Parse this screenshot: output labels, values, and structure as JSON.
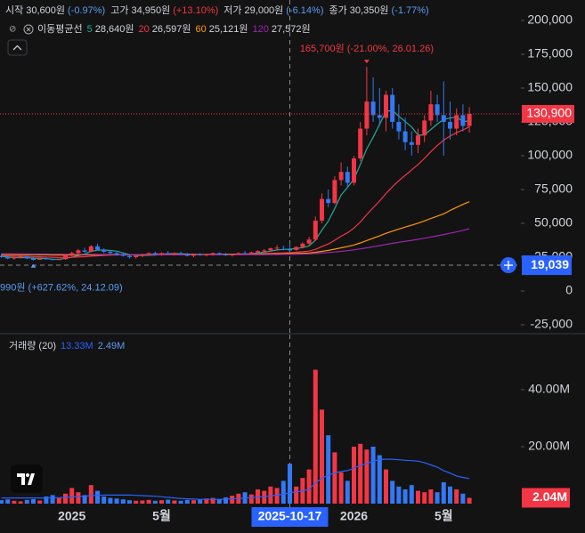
{
  "chart_data": [
    {
      "type": "candlestick",
      "ohlc_legend": [
        {
          "label": "시작",
          "value": "30,600원",
          "change": "(-0.97%)"
        },
        {
          "label": "고가",
          "value": "34,950원",
          "change": "(+13.10%)"
        },
        {
          "label": "저가",
          "value": "29,000원",
          "change": "(-6.14%)"
        },
        {
          "label": "종가",
          "value": "30,350원",
          "change": "(-1.77%)"
        }
      ],
      "ma_legend_title": "이동평균선",
      "up_color": "#f23645",
      "down_color": "#3179f5",
      "categories": [
        null,
        null,
        null,
        null,
        null,
        null,
        null,
        null,
        null,
        null,
        null,
        "2025",
        null,
        null,
        null,
        null,
        null,
        null,
        null,
        null,
        null,
        null,
        null,
        null,
        null,
        "5월",
        null,
        null,
        null,
        null,
        null,
        null,
        null,
        null,
        null,
        null,
        null,
        null,
        null,
        null,
        null,
        null,
        null,
        null,
        null,
        "2025-10-17",
        null,
        null,
        null,
        null,
        null,
        null,
        null,
        null,
        null,
        "2026",
        null,
        null,
        null,
        null,
        null,
        null,
        null,
        null,
        null,
        null,
        null,
        null,
        null,
        "5월",
        null,
        null,
        null,
        null
      ],
      "ohlc": [
        [
          26000,
          27500,
          24500,
          25000
        ],
        [
          25000,
          26000,
          23500,
          24000
        ],
        [
          24000,
          25500,
          23000,
          25000
        ],
        [
          25000,
          26500,
          24000,
          25500
        ],
        [
          25500,
          26000,
          23500,
          24000
        ],
        [
          24000,
          25000,
          22500,
          23000
        ],
        [
          23000,
          24500,
          23200,
          24000
        ],
        [
          24000,
          25000,
          23300,
          23500
        ],
        [
          23500,
          24000,
          22990,
          23000
        ],
        [
          23000,
          24000,
          23100,
          23500
        ],
        [
          23500,
          27000,
          23000,
          26500
        ],
        [
          26500,
          29000,
          25500,
          28000
        ],
        [
          28000,
          31000,
          27000,
          30000
        ],
        [
          30000,
          32000,
          28500,
          29000
        ],
        [
          29000,
          34000,
          28500,
          33000
        ],
        [
          33000,
          35000,
          30000,
          30500
        ],
        [
          30500,
          31500,
          28000,
          29000
        ],
        [
          29000,
          30000,
          27000,
          28000
        ],
        [
          28000,
          29000,
          26000,
          27000
        ],
        [
          27000,
          28500,
          25500,
          26000
        ],
        [
          26000,
          27000,
          24000,
          25000
        ],
        [
          25000,
          26500,
          24000,
          26000
        ],
        [
          26000,
          27500,
          25000,
          27000
        ],
        [
          27000,
          28500,
          26000,
          28000
        ],
        [
          28000,
          29000,
          26500,
          27000
        ],
        [
          27000,
          28500,
          26000,
          28000
        ],
        [
          28000,
          29500,
          27000,
          27500
        ],
        [
          27500,
          28500,
          26500,
          28000
        ],
        [
          28000,
          29000,
          27000,
          27000
        ],
        [
          27000,
          28000,
          25500,
          26000
        ],
        [
          26000,
          27500,
          25000,
          27000
        ],
        [
          27000,
          28000,
          26000,
          26500
        ],
        [
          26500,
          27500,
          25500,
          27000
        ],
        [
          27000,
          28500,
          26000,
          28000
        ],
        [
          28000,
          28500,
          26500,
          27000
        ],
        [
          27000,
          28000,
          26000,
          26500
        ],
        [
          26500,
          27500,
          25500,
          27000
        ],
        [
          27000,
          28500,
          26500,
          28000
        ],
        [
          28000,
          29500,
          27000,
          27500
        ],
        [
          27500,
          29000,
          27000,
          28500
        ],
        [
          28500,
          30000,
          27500,
          29500
        ],
        [
          29500,
          31000,
          28500,
          30000
        ],
        [
          30000,
          32000,
          29000,
          31500
        ],
        [
          31500,
          34000,
          30500,
          32000
        ],
        [
          31000,
          33500,
          30000,
          30600
        ],
        [
          30600,
          34950,
          29000,
          30350
        ],
        [
          30350,
          33000,
          29500,
          32500
        ],
        [
          32500,
          36000,
          31500,
          35000
        ],
        [
          35000,
          40000,
          34000,
          38000
        ],
        [
          38000,
          55000,
          37000,
          52000
        ],
        [
          52000,
          72000,
          50000,
          68000
        ],
        [
          68000,
          75000,
          62000,
          65000
        ],
        [
          65000,
          85000,
          64000,
          82000
        ],
        [
          82000,
          95000,
          78000,
          88000
        ],
        [
          88000,
          92000,
          76000,
          80000
        ],
        [
          80000,
          100000,
          78000,
          98000
        ],
        [
          98000,
          125000,
          96000,
          120000
        ],
        [
          120000,
          165700,
          115000,
          140000
        ],
        [
          140000,
          158000,
          125000,
          130000
        ],
        [
          130000,
          150000,
          122000,
          128000
        ],
        [
          128000,
          148000,
          118000,
          145000
        ],
        [
          145000,
          150000,
          120000,
          125000
        ],
        [
          125000,
          138000,
          112000,
          118000
        ],
        [
          118000,
          128000,
          104000,
          110000
        ],
        [
          110000,
          118000,
          100000,
          108000
        ],
        [
          108000,
          120000,
          102000,
          115000
        ],
        [
          115000,
          130000,
          110000,
          126000
        ],
        [
          126000,
          148000,
          122000,
          138000
        ],
        [
          138000,
          145000,
          125000,
          130000
        ],
        [
          130000,
          155000,
          100000,
          125000
        ],
        [
          125000,
          140000,
          112000,
          120000
        ],
        [
          120000,
          135000,
          115000,
          130000
        ],
        [
          130000,
          138000,
          118000,
          122000
        ],
        [
          122000,
          136000,
          117000,
          130900
        ]
      ],
      "series": [
        {
          "name": "5",
          "color": "#22ab94",
          "value_label": "28,640원",
          "values": [
            25500,
            25000,
            24800,
            24700,
            24700,
            24300,
            24300,
            24000,
            23500,
            23400,
            24100,
            24900,
            26200,
            27400,
            29300,
            30100,
            30300,
            29900,
            29500,
            28100,
            27000,
            26400,
            26200,
            26400,
            26600,
            27200,
            27500,
            27700,
            27500,
            27300,
            27100,
            26900,
            26700,
            26900,
            27100,
            27000,
            27100,
            27300,
            27200,
            27500,
            28100,
            28700,
            29400,
            30300,
            30700,
            30900,
            31400,
            32100,
            33300,
            37600,
            45000,
            51600,
            61000,
            71000,
            76600,
            82600,
            93600,
            105200,
            113600,
            123200,
            132600,
            133600,
            129200,
            125200,
            121200,
            115200,
            115400,
            119400,
            123400,
            126800,
            127800,
            128600,
            125400,
            125600
          ]
        },
        {
          "name": "20",
          "color": "#f23645",
          "value_label": "26,597원",
          "values": [
            26000,
            25900,
            25800,
            25700,
            25600,
            25400,
            25300,
            25100,
            24900,
            24800,
            24800,
            24900,
            25100,
            25300,
            25700,
            26000,
            26300,
            26500,
            26700,
            26800,
            26800,
            26900,
            27000,
            27200,
            27300,
            27400,
            27300,
            27300,
            27200,
            27100,
            27000,
            26900,
            26900,
            27000,
            27000,
            27100,
            27100,
            27200,
            27200,
            27300,
            27400,
            27600,
            27800,
            28000,
            28100,
            28300,
            28600,
            29000,
            29500,
            30700,
            32800,
            34700,
            37500,
            40500,
            43000,
            46500,
            51000,
            56500,
            61500,
            66500,
            72000,
            77000,
            81500,
            85500,
            89500,
            93500,
            98000,
            103000,
            107500,
            111500,
            114500,
            117000,
            119000,
            121500
          ]
        },
        {
          "name": "60",
          "color": "#ff9800",
          "value_label": "25,121원",
          "values": [
            27000,
            27000,
            26900,
            26900,
            26800,
            26800,
            26700,
            26700,
            26600,
            26600,
            26600,
            26600,
            26600,
            26700,
            26700,
            26700,
            26800,
            26800,
            26800,
            26800,
            26800,
            26800,
            26800,
            26900,
            26900,
            26900,
            26900,
            26900,
            26900,
            27000,
            27000,
            27000,
            27000,
            27000,
            27000,
            27100,
            27100,
            27100,
            27100,
            27200,
            27200,
            27300,
            27300,
            27400,
            27500,
            27600,
            27700,
            27900,
            28100,
            28600,
            29300,
            30000,
            30900,
            31900,
            32800,
            34000,
            35500,
            37300,
            39000,
            40700,
            42600,
            44200,
            45800,
            47200,
            48600,
            50100,
            51800,
            53600,
            55300,
            57000,
            59500,
            61800,
            64000,
            66000
          ]
        },
        {
          "name": "120",
          "color": "#9c27b0",
          "value_label": "27,572원",
          "values": [
            27500,
            27500,
            27400,
            27400,
            27400,
            27300,
            27300,
            27300,
            27200,
            27200,
            27200,
            27100,
            27100,
            27100,
            27100,
            27000,
            27000,
            27000,
            27000,
            27000,
            26900,
            26900,
            26900,
            26900,
            26900,
            26900,
            26800,
            26800,
            26800,
            26800,
            26800,
            26800,
            26800,
            26800,
            26800,
            26800,
            26800,
            26800,
            26900,
            26900,
            26900,
            26900,
            27000,
            27000,
            27100,
            27100,
            27200,
            27300,
            27400,
            27700,
            28000,
            28400,
            28800,
            29300,
            29800,
            30400,
            31100,
            31900,
            32700,
            33500,
            34400,
            35200,
            36000,
            36700,
            37400,
            38200,
            39000,
            39900,
            40800,
            41700,
            42700,
            43700,
            44800,
            46000
          ]
        }
      ],
      "high_annotation": "165,700원 (-21.00%, 26.01.26)",
      "low_annotation": "990원 (+627.62%, 24.12.09)",
      "last_price": {
        "value": 130900,
        "label": "130,900"
      },
      "crosshair_price": {
        "value": 19039,
        "label": "19,039"
      },
      "ylim": [
        -29600,
        215100
      ],
      "yticks": [
        {
          "value": 200000,
          "label": "200,000"
        },
        {
          "value": 175000,
          "label": "175,000"
        },
        {
          "value": 150000,
          "label": "150,000"
        },
        {
          "value": 125000,
          "label": "125,000"
        },
        {
          "value": 100000,
          "label": "100,000"
        },
        {
          "value": 75000,
          "label": "75,000"
        },
        {
          "value": 50000,
          "label": "50,000"
        },
        {
          "value": 25000,
          "label": "25,000"
        },
        0,
        {
          "value": -25000,
          "label": "-25,000"
        }
      ]
    },
    {
      "type": "bar",
      "title": "거래량 (20)",
      "legend_values": [
        "13.33M",
        "2.49M"
      ],
      "values": [
        1.2,
        1.5,
        1.0,
        0.8,
        1.3,
        1.6,
        1.1,
        2.5,
        3.0,
        2.0,
        3.5,
        5.5,
        4.0,
        3.0,
        6.5,
        4.5,
        2.5,
        2.0,
        1.8,
        1.5,
        1.2,
        1.0,
        1.1,
        1.3,
        1.0,
        1.2,
        1.4,
        1.1,
        1.0,
        1.3,
        1.2,
        1.5,
        1.8,
        2.0,
        1.6,
        2.2,
        2.8,
        3.5,
        4.0,
        3.2,
        5.0,
        4.5,
        6.0,
        5.5,
        8.0,
        14.0,
        6.0,
        9.0,
        12.0,
        47.0,
        33.0,
        24.0,
        18.0,
        11.0,
        8.0,
        20.0,
        21.0,
        19.0,
        20.0,
        17.0,
        12.0,
        8.0,
        6.0,
        5.0,
        6.5,
        4.5,
        4.0,
        5.0,
        4.0,
        7.5,
        6.0,
        5.0,
        3.5,
        2.04
      ],
      "value_labels": [
        null,
        null,
        null,
        null,
        null,
        null,
        null,
        null,
        null,
        null,
        null,
        null,
        null,
        null,
        null,
        null,
        null,
        null,
        null,
        null,
        null,
        null,
        null,
        null,
        null,
        null,
        null,
        null,
        null,
        null,
        null,
        null,
        null,
        null,
        null,
        null,
        null,
        null,
        null,
        null,
        null,
        null,
        null,
        null,
        null,
        null,
        null,
        null,
        null,
        null,
        null,
        null,
        null,
        null,
        null,
        null,
        null,
        null,
        null,
        null,
        null,
        null,
        null,
        null,
        null,
        null,
        null,
        null,
        null,
        null,
        null,
        null,
        null,
        "2.04M"
      ],
      "ma_color": "#2962ff",
      "ma_values": [
        2.0,
        2.0,
        2.0,
        2.0,
        2.0,
        2.0,
        2.0,
        2.0,
        2.1,
        2.1,
        2.2,
        2.4,
        2.5,
        2.6,
        2.8,
        2.9,
        3.0,
        3.0,
        3.0,
        3.0,
        3.0,
        2.9,
        2.8,
        2.7,
        2.6,
        2.4,
        2.2,
        2.0,
        1.8,
        1.7,
        1.6,
        1.5,
        1.5,
        1.5,
        1.5,
        1.6,
        1.7,
        1.8,
        2.0,
        2.1,
        2.3,
        2.5,
        2.7,
        3.0,
        3.3,
        3.9,
        4.1,
        4.5,
        5.0,
        7.3,
        8.9,
        10.0,
        10.8,
        11.3,
        11.6,
        12.5,
        13.4,
        14.1,
        14.9,
        15.5,
        15.6,
        15.6,
        15.4,
        15.2,
        15.1,
        14.9,
        14.4,
        13.6,
        12.8,
        11.6,
        10.7,
        9.7,
        9.2,
        8.8
      ],
      "ylim": [
        0,
        58.1
      ],
      "yticks": [
        {
          "value": 40,
          "label": "40.00M"
        },
        {
          "value": 20,
          "label": "20.00M"
        }
      ]
    }
  ]
}
